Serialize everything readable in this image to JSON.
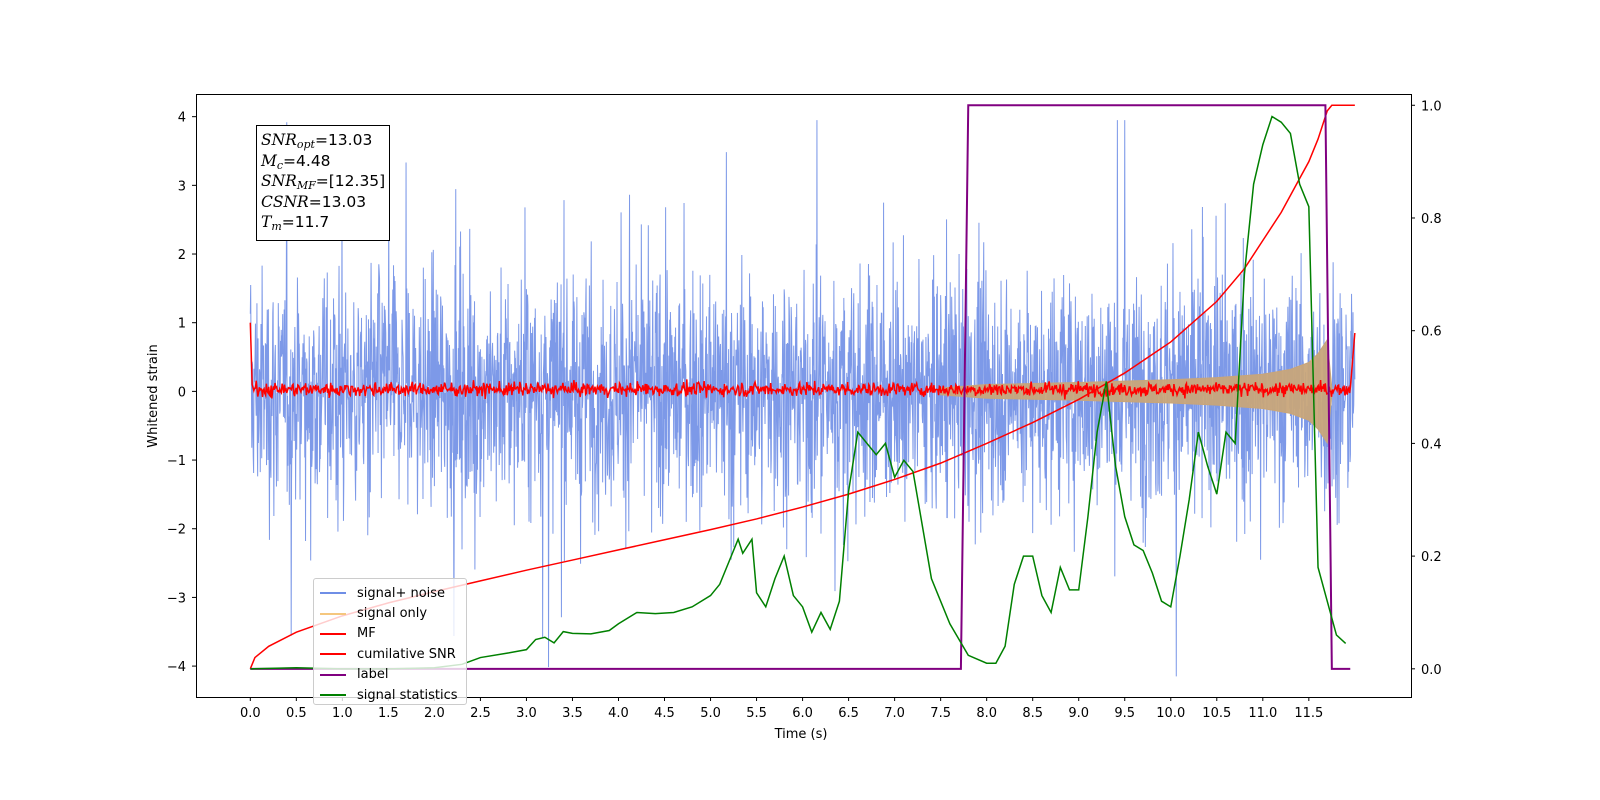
{
  "chart_data": {
    "type": "line",
    "xlabel": "Time (s)",
    "ylabel_left": "Whitened strain",
    "x_ticks": [
      0.0,
      0.5,
      1.0,
      1.5,
      2.0,
      2.5,
      3.0,
      3.5,
      4.0,
      4.5,
      5.0,
      5.5,
      6.0,
      6.5,
      7.0,
      7.5,
      8.0,
      8.5,
      9.0,
      9.5,
      10.0,
      10.5,
      11.0,
      11.5
    ],
    "x_tick_labels": [
      "0.0",
      "0.5",
      "1.0",
      "1.5",
      "2.0",
      "2.5",
      "3.0",
      "3.5",
      "4.0",
      "4.5",
      "5.0",
      "5.5",
      "6.0",
      "6.5",
      "7.0",
      "7.5",
      "8.0",
      "8.5",
      "9.0",
      "9.5",
      "10.0",
      "10.5",
      "11.0",
      "11.5"
    ],
    "xlim": [
      -0.59,
      12.61
    ],
    "ylim_left": [
      -4.45,
      4.33
    ],
    "y_left_ticks": [
      -4,
      -3,
      -2,
      -1,
      0,
      1,
      2,
      3,
      4
    ],
    "y_left_tick_labels": [
      "−4",
      "−3",
      "−2",
      "−1",
      "0",
      "1",
      "2",
      "3",
      "4"
    ],
    "ylim_right": [
      -0.05,
      1.02
    ],
    "y_right_ticks": [
      0.0,
      0.2,
      0.4,
      0.6,
      0.8,
      1.0
    ],
    "y_right_tick_labels": [
      "0.0",
      "0.2",
      "0.4",
      "0.6",
      "0.8",
      "1.0"
    ],
    "grid": false,
    "legend_position": "lower-left",
    "legend": [
      {
        "label": "signal+ noise",
        "color": "#6f8ee6"
      },
      {
        "label": "signal only",
        "color": "#f5c77e"
      },
      {
        "label": "MF",
        "color": "#ff0000"
      },
      {
        "label": "cumilative SNR",
        "color": "#ff0000"
      },
      {
        "label": "label",
        "color": "#800080"
      },
      {
        "label": "signal statistics",
        "color": "#008000"
      }
    ],
    "annotation": {
      "snr_opt": "=13.03",
      "mc": "=4.48",
      "snr_mf": "=[12.35]",
      "csnr": "=13.03",
      "tm": "=11.7"
    },
    "series": {
      "signal_noise": {
        "axis": "left",
        "color": "#6f8ee6",
        "x_range": [
          0.0,
          12.0
        ],
        "amplitude_envelope": [
          2.4,
          3.9
        ]
      },
      "signal_only": {
        "axis": "left",
        "color": "#c8a57a",
        "envelope_x": [
          7.5,
          8.0,
          9.0,
          10.0,
          10.5,
          11.0,
          11.3,
          11.5,
          11.6,
          11.7,
          11.75
        ],
        "envelope_y": [
          0.05,
          0.1,
          0.13,
          0.17,
          0.2,
          0.25,
          0.32,
          0.42,
          0.55,
          0.75,
          0.05
        ]
      },
      "mf": {
        "axis": "left",
        "color": "#ff0000",
        "x_range": [
          0.0,
          12.0
        ],
        "start": 1.0,
        "end": 0.85
      },
      "cumulative_snr": {
        "axis": "right",
        "x": [
          0.0,
          0.05,
          0.2,
          0.5,
          1.0,
          1.5,
          2.0,
          2.5,
          3.0,
          3.5,
          4.0,
          4.5,
          5.0,
          5.5,
          6.0,
          6.5,
          7.0,
          7.5,
          8.0,
          8.5,
          9.0,
          9.5,
          10.0,
          10.5,
          10.8,
          11.0,
          11.2,
          11.4,
          11.5,
          11.6,
          11.7,
          11.75,
          12.0
        ],
        "y": [
          0.0,
          0.02,
          0.04,
          0.065,
          0.094,
          0.117,
          0.137,
          0.156,
          0.175,
          0.193,
          0.211,
          0.229,
          0.247,
          0.266,
          0.287,
          0.31,
          0.336,
          0.365,
          0.4,
          0.437,
          0.478,
          0.525,
          0.58,
          0.652,
          0.71,
          0.76,
          0.81,
          0.87,
          0.9,
          0.94,
          0.99,
          1.0,
          1.0
        ]
      },
      "label": {
        "axis": "right",
        "color": "#800080",
        "x": [
          0.0,
          7.72,
          7.8,
          11.68,
          11.75,
          11.95
        ],
        "y": [
          0.0,
          0.0,
          1.0,
          1.0,
          0.0,
          0.0
        ]
      },
      "signal_statistics": {
        "axis": "right",
        "color": "#008000",
        "x": [
          0.0,
          0.5,
          1.0,
          1.5,
          2.0,
          2.3,
          2.5,
          2.8,
          3.0,
          3.1,
          3.2,
          3.3,
          3.4,
          3.5,
          3.7,
          3.9,
          4.0,
          4.2,
          4.4,
          4.6,
          4.8,
          5.0,
          5.1,
          5.2,
          5.3,
          5.35,
          5.45,
          5.5,
          5.6,
          5.7,
          5.8,
          5.9,
          6.0,
          6.1,
          6.2,
          6.3,
          6.4,
          6.5,
          6.6,
          6.8,
          6.9,
          7.0,
          7.1,
          7.2,
          7.4,
          7.6,
          7.8,
          8.0,
          8.1,
          8.2,
          8.3,
          8.4,
          8.5,
          8.6,
          8.7,
          8.8,
          8.9,
          9.0,
          9.1,
          9.2,
          9.3,
          9.4,
          9.5,
          9.6,
          9.7,
          9.8,
          9.9,
          10.0,
          10.1,
          10.2,
          10.3,
          10.4,
          10.5,
          10.6,
          10.7,
          10.8,
          10.9,
          11.0,
          11.1,
          11.2,
          11.3,
          11.4,
          11.5,
          11.6,
          11.7,
          11.8,
          11.9
        ],
        "y": [
          0.0,
          0.002,
          0.0,
          0.0,
          0.002,
          0.008,
          0.02,
          0.028,
          0.034,
          0.052,
          0.056,
          0.046,
          0.066,
          0.063,
          0.062,
          0.068,
          0.08,
          0.1,
          0.098,
          0.1,
          0.11,
          0.13,
          0.15,
          0.19,
          0.23,
          0.205,
          0.23,
          0.135,
          0.11,
          0.16,
          0.2,
          0.13,
          0.11,
          0.065,
          0.1,
          0.07,
          0.12,
          0.315,
          0.42,
          0.38,
          0.4,
          0.34,
          0.37,
          0.35,
          0.16,
          0.08,
          0.024,
          0.01,
          0.01,
          0.04,
          0.15,
          0.2,
          0.2,
          0.13,
          0.1,
          0.18,
          0.14,
          0.14,
          0.27,
          0.42,
          0.51,
          0.36,
          0.27,
          0.22,
          0.21,
          0.17,
          0.12,
          0.11,
          0.2,
          0.3,
          0.42,
          0.36,
          0.31,
          0.42,
          0.4,
          0.7,
          0.86,
          0.93,
          0.98,
          0.97,
          0.95,
          0.86,
          0.82,
          0.18,
          0.12,
          0.06,
          0.045
        ]
      }
    }
  }
}
